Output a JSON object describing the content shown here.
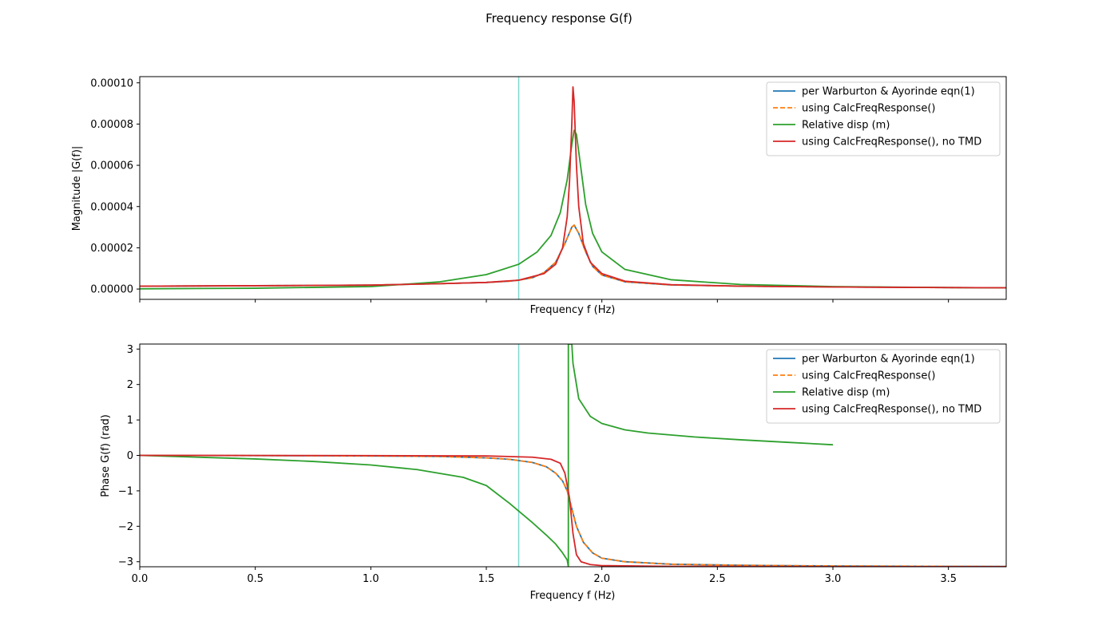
{
  "figure": {
    "title": "Frequency response G(f)"
  },
  "colors": {
    "warburton": "#1f77b4",
    "calc": "#ff7f0e",
    "relative": "#2ca02c",
    "notmd": "#d62728",
    "marker": "#7fd8d0"
  },
  "chart_data": [
    {
      "type": "line",
      "xlabel": "Frequency f (Hz)",
      "ylabel": "Magnitude |G(f)|",
      "xlim": [
        0.0,
        3.75
      ],
      "ylim": [
        -5e-06,
        0.000103
      ],
      "xticks": [
        0.0,
        0.5,
        1.0,
        1.5,
        2.0,
        2.5,
        3.0,
        3.5
      ],
      "xtick_labels": [
        "",
        "",
        "",
        "",
        "",
        "",
        "",
        ""
      ],
      "yticks": [
        0.0,
        2e-05,
        4e-05,
        6e-05,
        8e-05,
        0.0001
      ],
      "ytick_labels": [
        "0.00000",
        "0.00002",
        "0.00004",
        "0.00006",
        "0.00008",
        "0.00010"
      ],
      "vline_x": 1.64,
      "legend_position": "upper right",
      "grid": false,
      "series": [
        {
          "name": "per Warburton & Ayorinde eqn(1)",
          "color_key": "warburton",
          "dash": false,
          "points": [
            [
              0,
              1.4e-06
            ],
            [
              0.5,
              1.6e-06
            ],
            [
              1.0,
              1.9e-06
            ],
            [
              1.3,
              2.6e-06
            ],
            [
              1.5,
              3.2e-06
            ],
            [
              1.6,
              3.8e-06
            ],
            [
              1.64,
              4.3e-06
            ],
            [
              1.7,
              5.5e-06
            ],
            [
              1.75,
              8e-06
            ],
            [
              1.8,
              1.3e-05
            ],
            [
              1.84,
              2.2e-05
            ],
            [
              1.87,
              3e-05
            ],
            [
              1.88,
              3.1e-05
            ],
            [
              1.9,
              2.7e-05
            ],
            [
              1.93,
              1.8e-05
            ],
            [
              1.96,
              1.1e-05
            ],
            [
              2.0,
              6.8e-06
            ],
            [
              2.1,
              3.5e-06
            ],
            [
              2.3,
              2e-06
            ],
            [
              2.6,
              1.4e-06
            ],
            [
              3.0,
              1e-06
            ],
            [
              3.5,
              7e-07
            ],
            [
              3.75,
              6e-07
            ]
          ]
        },
        {
          "name": "using CalcFreqResponse()",
          "color_key": "calc",
          "dash": true,
          "points": [
            [
              0,
              1.4e-06
            ],
            [
              0.5,
              1.6e-06
            ],
            [
              1.0,
              1.9e-06
            ],
            [
              1.3,
              2.6e-06
            ],
            [
              1.5,
              3.2e-06
            ],
            [
              1.6,
              3.8e-06
            ],
            [
              1.64,
              4.3e-06
            ],
            [
              1.7,
              5.5e-06
            ],
            [
              1.75,
              8e-06
            ],
            [
              1.8,
              1.3e-05
            ],
            [
              1.84,
              2.2e-05
            ],
            [
              1.87,
              3e-05
            ],
            [
              1.88,
              3.1e-05
            ],
            [
              1.9,
              2.7e-05
            ],
            [
              1.93,
              1.8e-05
            ],
            [
              1.96,
              1.1e-05
            ],
            [
              2.0,
              6.8e-06
            ],
            [
              2.1,
              3.5e-06
            ],
            [
              2.3,
              2e-06
            ],
            [
              2.6,
              1.4e-06
            ],
            [
              3.0,
              1e-06
            ],
            [
              3.5,
              7e-07
            ],
            [
              3.75,
              6e-07
            ]
          ]
        },
        {
          "name": "Relative disp (m)",
          "color_key": "relative",
          "dash": false,
          "points": [
            [
              0,
              1e-07
            ],
            [
              0.5,
              4e-07
            ],
            [
              1.0,
              1.2e-06
            ],
            [
              1.3,
              3.5e-06
            ],
            [
              1.5,
              7e-06
            ],
            [
              1.64,
              1.2e-05
            ],
            [
              1.72,
              1.8e-05
            ],
            [
              1.78,
              2.6e-05
            ],
            [
              1.82,
              3.7e-05
            ],
            [
              1.85,
              5.3e-05
            ],
            [
              1.87,
              7e-05
            ],
            [
              1.88,
              7.7e-05
            ],
            [
              1.89,
              7.5e-05
            ],
            [
              1.91,
              5.8e-05
            ],
            [
              1.93,
              4.1e-05
            ],
            [
              1.96,
              2.7e-05
            ],
            [
              2.0,
              1.8e-05
            ],
            [
              2.1,
              9.5e-06
            ],
            [
              2.3,
              4.5e-06
            ],
            [
              2.6,
              2.2e-06
            ],
            [
              3.0,
              1.2e-06
            ],
            [
              3.5,
              7e-07
            ],
            [
              3.75,
              6e-07
            ]
          ]
        },
        {
          "name": "using CalcFreqResponse(), no TMD",
          "color_key": "notmd",
          "dash": false,
          "points": [
            [
              0,
              1.4e-06
            ],
            [
              0.5,
              1.6e-06
            ],
            [
              1.0,
              1.9e-06
            ],
            [
              1.3,
              2.6e-06
            ],
            [
              1.5,
              3.2e-06
            ],
            [
              1.64,
              4.3e-06
            ],
            [
              1.75,
              7.5e-06
            ],
            [
              1.8,
              1.2e-05
            ],
            [
              1.83,
              2e-05
            ],
            [
              1.85,
              3.5e-05
            ],
            [
              1.86,
              5.2e-05
            ],
            [
              1.87,
              8e-05
            ],
            [
              1.875,
              9.8e-05
            ],
            [
              1.88,
              9.1e-05
            ],
            [
              1.89,
              6e-05
            ],
            [
              1.9,
              4e-05
            ],
            [
              1.92,
              2.2e-05
            ],
            [
              1.95,
              1.3e-05
            ],
            [
              2.0,
              7.5e-06
            ],
            [
              2.1,
              3.8e-06
            ],
            [
              2.3,
              2.1e-06
            ],
            [
              2.6,
              1.4e-06
            ],
            [
              3.0,
              1e-06
            ],
            [
              3.5,
              7e-07
            ],
            [
              3.75,
              6e-07
            ]
          ]
        }
      ]
    },
    {
      "type": "line",
      "xlabel": "Frequency f (Hz)",
      "ylabel": "Phase G(f) (rad)",
      "xlim": [
        0.0,
        3.75
      ],
      "ylim": [
        -3.1416,
        3.1416
      ],
      "xticks": [
        0.0,
        0.5,
        1.0,
        1.5,
        2.0,
        2.5,
        3.0,
        3.5
      ],
      "xtick_labels": [
        "0.0",
        "0.5",
        "1.0",
        "1.5",
        "2.0",
        "2.5",
        "3.0",
        "3.5"
      ],
      "yticks": [
        -3,
        -2,
        -1,
        0,
        1,
        2,
        3
      ],
      "ytick_labels": [
        "−3",
        "−2",
        "−1",
        "0",
        "1",
        "2",
        "3"
      ],
      "vline_x": 1.64,
      "legend_position": "upper right",
      "grid": false,
      "series": [
        {
          "name": "per Warburton & Ayorinde eqn(1)",
          "color_key": "warburton",
          "dash": false,
          "points": [
            [
              0,
              0
            ],
            [
              0.5,
              -0.005
            ],
            [
              1.0,
              -0.015
            ],
            [
              1.3,
              -0.03
            ],
            [
              1.5,
              -0.07
            ],
            [
              1.6,
              -0.11
            ],
            [
              1.7,
              -0.2
            ],
            [
              1.76,
              -0.32
            ],
            [
              1.8,
              -0.5
            ],
            [
              1.83,
              -0.72
            ],
            [
              1.85,
              -1.0
            ],
            [
              1.87,
              -1.5
            ],
            [
              1.89,
              -2.0
            ],
            [
              1.92,
              -2.45
            ],
            [
              1.96,
              -2.75
            ],
            [
              2.0,
              -2.9
            ],
            [
              2.1,
              -3.0
            ],
            [
              2.3,
              -3.07
            ],
            [
              2.6,
              -3.1
            ],
            [
              3.0,
              -3.12
            ],
            [
              3.5,
              -3.13
            ],
            [
              3.75,
              -3.135
            ]
          ]
        },
        {
          "name": "using CalcFreqResponse()",
          "color_key": "calc",
          "dash": true,
          "points": [
            [
              0,
              0
            ],
            [
              0.5,
              -0.005
            ],
            [
              1.0,
              -0.015
            ],
            [
              1.3,
              -0.03
            ],
            [
              1.5,
              -0.07
            ],
            [
              1.6,
              -0.11
            ],
            [
              1.7,
              -0.2
            ],
            [
              1.76,
              -0.32
            ],
            [
              1.8,
              -0.5
            ],
            [
              1.83,
              -0.72
            ],
            [
              1.85,
              -1.0
            ],
            [
              1.87,
              -1.5
            ],
            [
              1.89,
              -2.0
            ],
            [
              1.92,
              -2.45
            ],
            [
              1.96,
              -2.75
            ],
            [
              2.0,
              -2.9
            ],
            [
              2.1,
              -3.0
            ],
            [
              2.3,
              -3.07
            ],
            [
              2.6,
              -3.1
            ],
            [
              3.0,
              -3.12
            ],
            [
              3.5,
              -3.13
            ],
            [
              3.75,
              -3.135
            ]
          ]
        },
        {
          "name": "Relative disp (m)",
          "color_key": "relative",
          "dash": false,
          "points": [
            [
              0,
              0
            ],
            [
              0.25,
              -0.05
            ],
            [
              0.5,
              -0.1
            ],
            [
              0.75,
              -0.17
            ],
            [
              1.0,
              -0.27
            ],
            [
              1.2,
              -0.4
            ],
            [
              1.4,
              -0.62
            ],
            [
              1.5,
              -0.85
            ],
            [
              1.6,
              -1.35
            ],
            [
              1.7,
              -1.9
            ],
            [
              1.76,
              -2.25
            ],
            [
              1.8,
              -2.5
            ],
            [
              1.83,
              -2.75
            ],
            [
              1.85,
              -2.95
            ],
            [
              1.855,
              -3.1416
            ],
            [
              1.855,
              3.1416
            ],
            [
              1.87,
              3.1416
            ],
            [
              1.875,
              2.6
            ],
            [
              1.9,
              1.6
            ],
            [
              1.95,
              1.1
            ],
            [
              2.0,
              0.9
            ],
            [
              2.1,
              0.72
            ],
            [
              2.2,
              0.63
            ],
            [
              2.4,
              0.52
            ],
            [
              2.6,
              0.44
            ],
            [
              2.8,
              0.37
            ],
            [
              3.0,
              0.3
            ]
          ]
        },
        {
          "name": "using CalcFreqResponse(), no TMD",
          "color_key": "notmd",
          "dash": false,
          "points": [
            [
              0,
              0
            ],
            [
              0.5,
              -0.002
            ],
            [
              1.0,
              -0.005
            ],
            [
              1.5,
              -0.015
            ],
            [
              1.7,
              -0.05
            ],
            [
              1.78,
              -0.11
            ],
            [
              1.82,
              -0.22
            ],
            [
              1.84,
              -0.5
            ],
            [
              1.86,
              -1.2
            ],
            [
              1.875,
              -2.2
            ],
            [
              1.89,
              -2.8
            ],
            [
              1.91,
              -3.0
            ],
            [
              1.95,
              -3.08
            ],
            [
              2.0,
              -3.11
            ],
            [
              2.3,
              -3.13
            ],
            [
              3.0,
              -3.138
            ],
            [
              3.75,
              -3.14
            ]
          ]
        }
      ]
    }
  ]
}
